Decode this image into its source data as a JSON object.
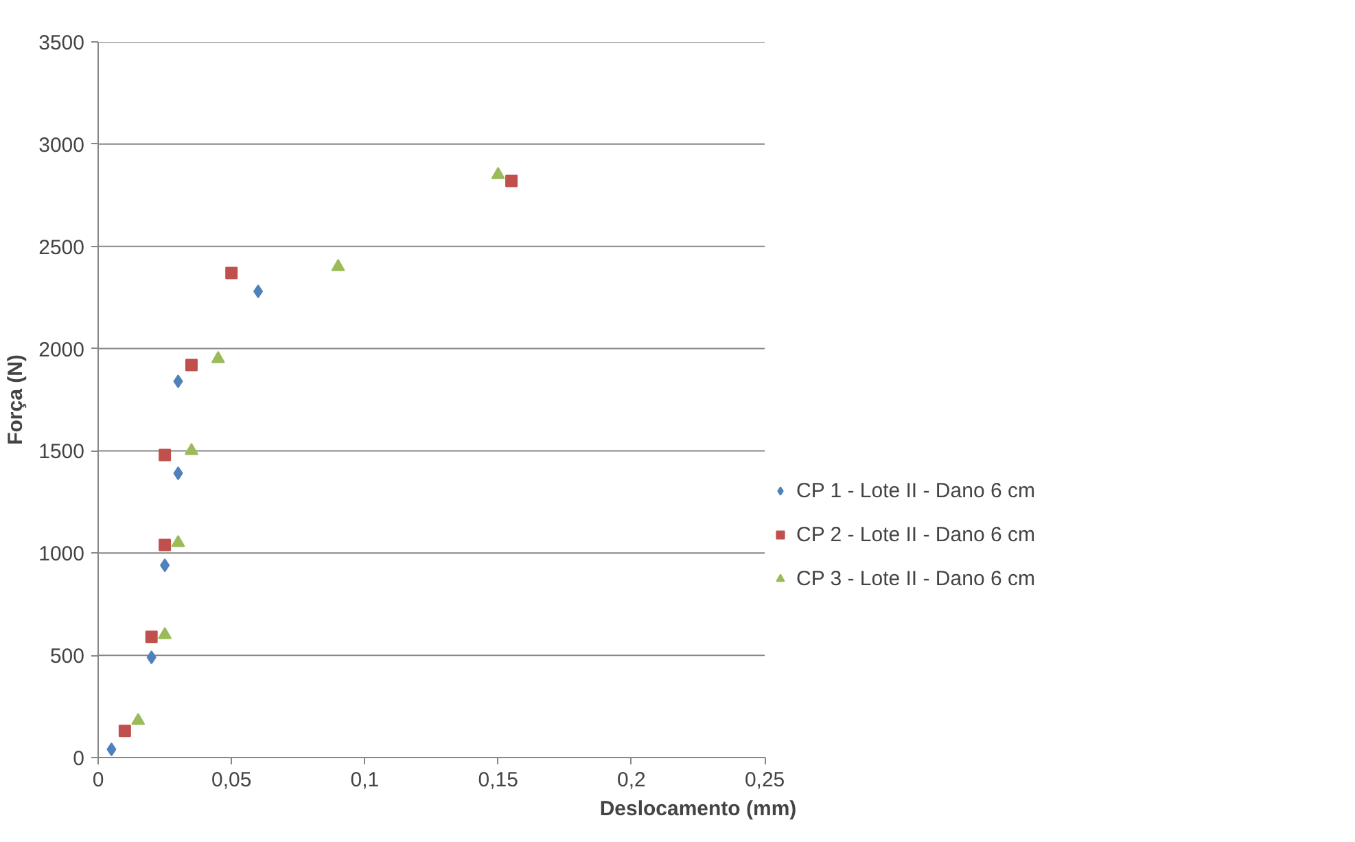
{
  "chart_data": {
    "type": "scatter",
    "xlabel": "Deslocamento (mm)",
    "ylabel": "Força (N)",
    "xlim": [
      0,
      0.25
    ],
    "xticks": [
      {
        "value": 0,
        "label": "0"
      },
      {
        "value": 0.05,
        "label": "0,05"
      },
      {
        "value": 0.1,
        "label": "0,1"
      },
      {
        "value": 0.15,
        "label": "0,15"
      },
      {
        "value": 0.2,
        "label": "0,2"
      },
      {
        "value": 0.25,
        "label": "0,25"
      }
    ],
    "ylim": [
      0,
      3500
    ],
    "yticks": [
      0,
      500,
      1000,
      1500,
      2000,
      2500,
      3000,
      3500
    ],
    "grid": "y",
    "legend": "right",
    "series": [
      {
        "name": "CP 1 - Lote II - Dano 6 cm",
        "color": "#4f81bd",
        "marker": "diamond",
        "x": [
          0.005,
          0.02,
          0.025,
          0.03,
          0.03,
          0.06
        ],
        "values": [
          40,
          490,
          940,
          1390,
          1840,
          2280
        ]
      },
      {
        "name": "CP 2 - Lote II - Dano 6 cm",
        "color": "#c0504d",
        "marker": "square",
        "x": [
          0.01,
          0.02,
          0.025,
          0.025,
          0.035,
          0.05,
          0.155
        ],
        "values": [
          130,
          590,
          1040,
          1480,
          1920,
          2370,
          2820
        ]
      },
      {
        "name": "CP 3 - Lote II - Dano 6 cm",
        "color": "#9bbb59",
        "marker": "triangle",
        "x": [
          0.015,
          0.025,
          0.03,
          0.035,
          0.045,
          0.09,
          0.15
        ],
        "values": [
          180,
          600,
          1050,
          1500,
          1950,
          2400,
          2850
        ]
      }
    ]
  }
}
